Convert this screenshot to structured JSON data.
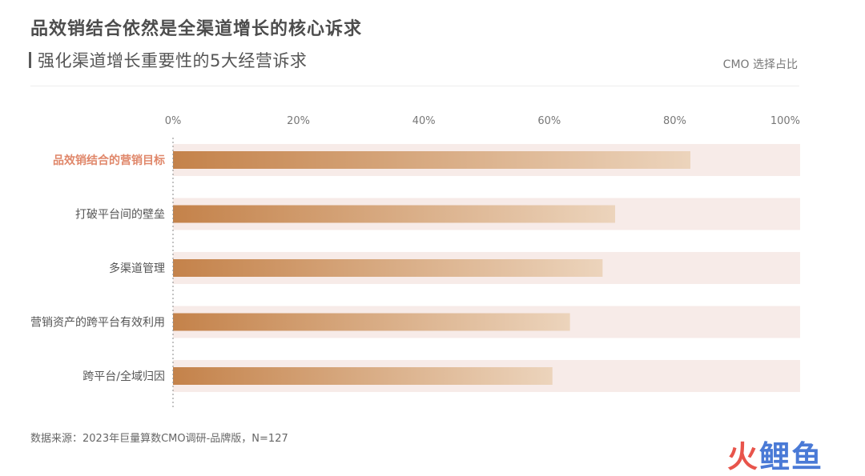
{
  "header": {
    "title": "品效销结合依然是全渠道增长的核心诉求",
    "subtitle": "强化渠道增长重要性的5大经营诉求",
    "unit_label": "CMO 选择占比"
  },
  "footer": {
    "source": "数据来源：2023年巨量算数CMO调研-品牌版，N=127",
    "brand_part1": "火",
    "brand_part2": "鲤鱼"
  },
  "colors": {
    "bar_start": "#c4824a",
    "bar_end": "#ecd4bc",
    "track": "#f7ebe8",
    "highlight_label": "#e0876a",
    "label": "#555555",
    "tick": "#777777"
  },
  "chart_data": {
    "type": "bar",
    "orientation": "horizontal",
    "categories": [
      "品效销结合的营销目标",
      "打破平台间的壁垒",
      "多渠道管理",
      "营销资产的跨平台有效利用",
      "跨平台/全域归因"
    ],
    "values": [
      82.5,
      70.5,
      68.5,
      63.3,
      60.5
    ],
    "highlight_index": 0,
    "xlim": [
      0,
      100
    ],
    "ticks": [
      "0%",
      "20%",
      "40%",
      "60%",
      "80%",
      "100%"
    ],
    "tick_values": [
      0,
      20,
      40,
      60,
      80,
      100
    ],
    "grid": false,
    "legend": "none"
  }
}
